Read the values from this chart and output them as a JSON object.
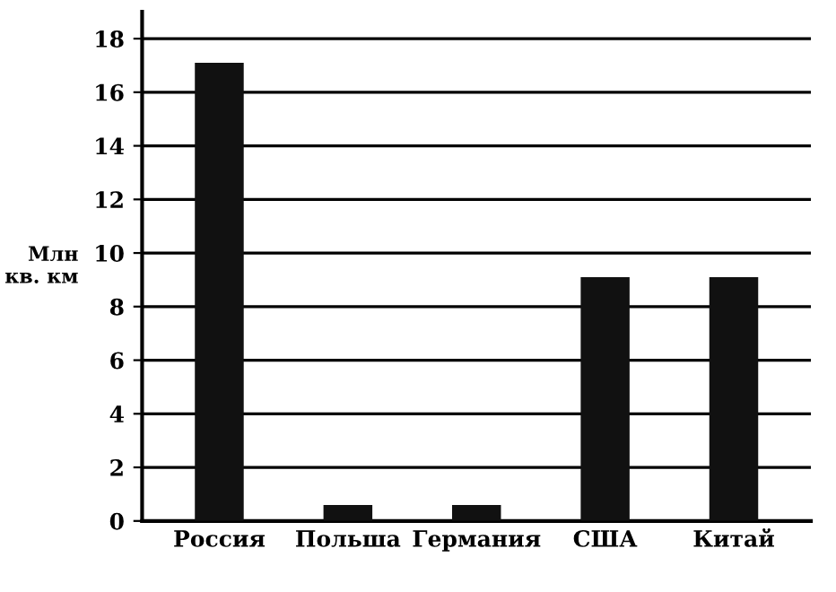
{
  "chart_data": {
    "type": "bar",
    "ylabel": "Млн\nкв. км",
    "categories": [
      "Россия",
      "Польша",
      "Германия",
      "США",
      "Китай"
    ],
    "values": [
      17.1,
      0.6,
      0.6,
      9.1,
      9.1
    ],
    "color": "#111111",
    "ylim": [
      0,
      19
    ],
    "yticks": [
      0,
      2,
      4,
      6,
      8,
      10,
      12,
      14,
      16,
      18
    ],
    "grid": "y"
  }
}
